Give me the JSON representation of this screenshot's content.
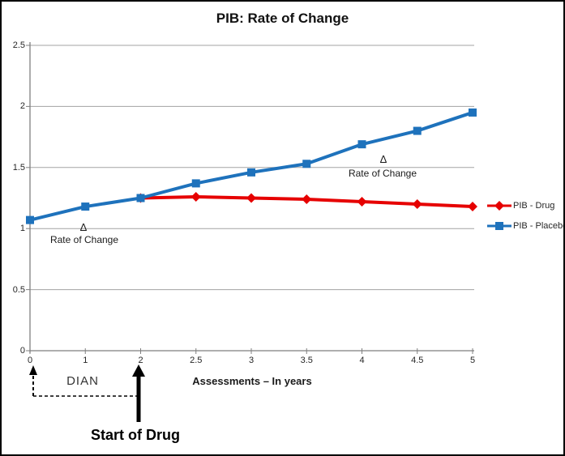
{
  "chart_data": {
    "type": "line",
    "title": "PIB: Rate of Change",
    "xlabel": "Assessments – In years",
    "ylabel": "",
    "categories": [
      "0",
      "1",
      "2",
      "2.5",
      "3",
      "3.5",
      "4",
      "4.5",
      "5"
    ],
    "y_ticks": [
      "0",
      "0.5",
      "1",
      "1.5",
      "2",
      "2.5"
    ],
    "ylim": [
      0,
      2.5
    ],
    "grid": "horizontal",
    "legend_position": "right",
    "series": [
      {
        "name": "PIB - Drug",
        "color": "#e60000",
        "marker": "diamond",
        "values": [
          null,
          null,
          1.25,
          1.26,
          1.25,
          1.24,
          1.22,
          1.2,
          1.18
        ]
      },
      {
        "name": "PIB - Placebo",
        "color": "#1e72bc",
        "marker": "square",
        "values": [
          1.07,
          1.18,
          1.25,
          1.37,
          1.46,
          1.53,
          1.69,
          1.8,
          1.95
        ]
      }
    ]
  },
  "annotations": {
    "delta_left": {
      "symbol": "Δ",
      "label": "Rate of Change"
    },
    "delta_right": {
      "symbol": "Δ",
      "label": "Rate of Change"
    },
    "dian": {
      "label": "DIAN"
    },
    "start_of_drug": {
      "label": "Start of Drug"
    }
  },
  "colors": {
    "drug": "#e60000",
    "placebo": "#1e72bc",
    "gridline": "#a3a3a3",
    "axis": "#7f7f7f",
    "arrow": "#000000"
  }
}
